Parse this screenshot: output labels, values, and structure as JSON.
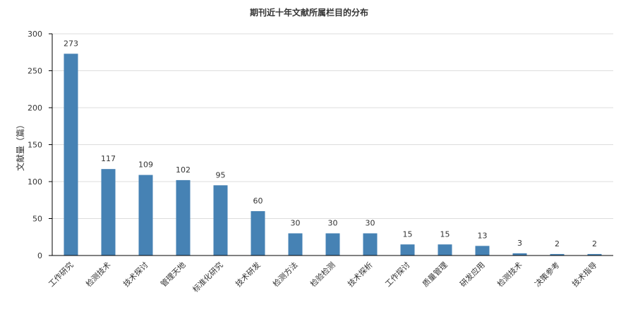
{
  "chart_data": {
    "type": "bar",
    "title": "期刊近十年文献所属栏目的分布",
    "ylabel": "文献量（篇）",
    "xlabel": "",
    "ylim": [
      0,
      300
    ],
    "yticks": [
      0,
      50,
      100,
      150,
      200,
      250,
      300
    ],
    "grid": true,
    "bar_color": "#4682b4",
    "categories": [
      "工作研究",
      "检测技术",
      "技术探讨",
      "管理天地",
      "标准化研究",
      "技术研发",
      "检测方法",
      "检验检测",
      "技术探析",
      "工作探讨",
      "质量管理",
      "研发应用",
      "检测技术",
      "决策参考",
      "技术指导"
    ],
    "values": [
      273,
      117,
      109,
      102,
      95,
      60,
      30,
      30,
      30,
      15,
      15,
      13,
      3,
      2,
      2
    ]
  }
}
